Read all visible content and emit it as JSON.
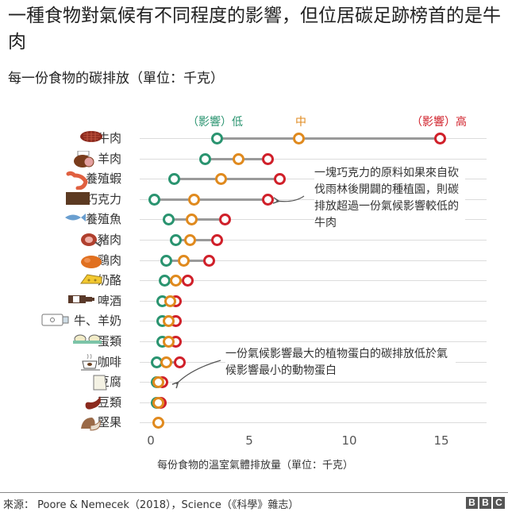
{
  "header": {
    "title": "一種食物對氣候有不同程度的影響，但位居碳足跡榜首的是牛肉",
    "subtitle": "每一份食物的碳排放（單位：千克）"
  },
  "legend": {
    "low": "（影響）低",
    "mid": "中",
    "high": "（影響）高"
  },
  "colors": {
    "low": "#2a9470",
    "mid": "#e08a1e",
    "high": "#d0202a",
    "range_line": "#9a9a9a",
    "grid": "#dcdcdc"
  },
  "annotations": {
    "chocolate": "一塊巧克力的原料如果來自砍伐雨林後開闢的種植園，則碳排放超過一份氣候影響較低的牛肉",
    "tofu": "一份氣候影響最大的植物蛋白的碳排放低於氣候影響最小的動物蛋白"
  },
  "axis": {
    "xlabel": "每份食物的溫室氣體排放量（單位：千克）",
    "ticks": [
      "0",
      "5",
      "10",
      "15"
    ]
  },
  "footer": {
    "source": "來源： Poore & Nemecek（2018），Science（《科學》雜志）",
    "logo": [
      "B",
      "B",
      "C"
    ]
  },
  "chart_data": {
    "type": "scatter",
    "subtype": "dumbbell",
    "title": "一種食物對氣候有不同程度的影響，但位居碳足跡榜首的是牛肉",
    "subtitle": "每一份食物的碳排放（單位：千克）",
    "xlabel": "每份食物的溫室氣體排放量（單位：千克）",
    "ylabel": "",
    "xlim": [
      0,
      17
    ],
    "xticks": [
      0,
      5,
      10,
      15
    ],
    "grid": true,
    "legend_position": "top",
    "categories": [
      "牛肉",
      "羊肉",
      "養殖蝦",
      "巧克力",
      "養殖魚",
      "豬肉",
      "鷄肉",
      "奶酪",
      "啤酒",
      "牛、羊奶",
      "蛋類",
      "咖啡",
      "豆腐",
      "豆類",
      "堅果"
    ],
    "series": [
      {
        "name": "（影響）低",
        "color": "#2a9470",
        "values": [
          3.4,
          2.8,
          1.2,
          0.2,
          0.9,
          1.3,
          0.8,
          0.7,
          0.6,
          0.6,
          0.6,
          0.3,
          0.3,
          0.3,
          null
        ]
      },
      {
        "name": "中",
        "color": "#e08a1e",
        "values": [
          7.6,
          4.5,
          3.6,
          2.2,
          2.1,
          2.0,
          1.7,
          1.3,
          1.0,
          0.9,
          0.9,
          0.8,
          0.4,
          0.4,
          0.4
        ]
      },
      {
        "name": "（影響）高",
        "color": "#d0202a",
        "values": [
          14.8,
          6.0,
          6.6,
          6.0,
          3.8,
          3.4,
          3.0,
          1.9,
          1.3,
          1.3,
          1.3,
          1.5,
          0.6,
          0.5,
          null
        ]
      }
    ],
    "annotations": [
      {
        "target": "巧克力",
        "text": "一塊巧克力的原料如果來自砍伐雨林後開闢的種植園，則碳排放超過一份氣候影響較低的牛肉"
      },
      {
        "target": "豆腐",
        "text": "一份氣候影響最大的植物蛋白的碳排放低於氣候影響最小的動物蛋白"
      }
    ]
  }
}
